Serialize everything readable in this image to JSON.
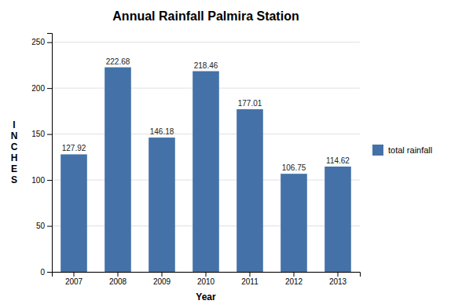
{
  "chart_data": {
    "type": "bar",
    "title": "Annual Rainfall Palmira Station",
    "xlabel": "Year",
    "ylabel": "I\nN\nC\nH\nE\nS",
    "categories": [
      "2007",
      "2008",
      "2009",
      "2010",
      "2011",
      "2012",
      "2013"
    ],
    "series": [
      {
        "name": "total rainfall",
        "color": "#4472a8",
        "values": [
          127.92,
          222.68,
          146.18,
          218.46,
          177.01,
          106.75,
          114.62
        ]
      }
    ],
    "ylim": [
      0,
      260
    ],
    "yticks": [
      0,
      50,
      100,
      150,
      200,
      250
    ],
    "grid": true,
    "legend": "right",
    "data_labels": true
  }
}
